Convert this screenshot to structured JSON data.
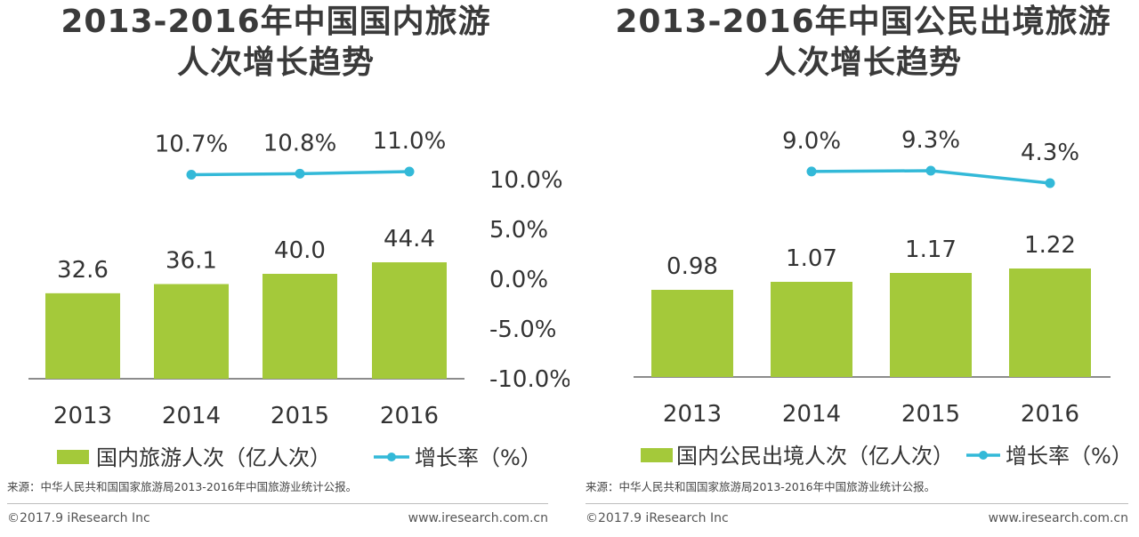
{
  "charts": [
    {
      "title_line1": "2013-2016年中国国内旅游",
      "title_line2": "人次增长趋势",
      "source": "来源：中华人民共和国国家旅游局2013-2016年中国旅游业统计公报。",
      "copyright": "©2017.9 iResearch Inc",
      "website": "www.iresearch.com.cn"
    },
    {
      "title_line1": "2013-2016年中国公民出境旅游",
      "title_line2": "人次增长趋势",
      "source": "来源：中华人民共和国国家旅游局2013-2016年中国旅游业统计公报。",
      "copyright": "©2017.9 iResearch Inc",
      "website": "www.iresearch.com.cn"
    }
  ],
  "colors": {
    "bar": "#a4c93a",
    "line": "#33b9d8",
    "axis": "#555555"
  },
  "chart_data": [
    {
      "type": "bar",
      "title": "2013-2016年中国国内旅游人次增长趋势",
      "categories": [
        "2013",
        "2014",
        "2015",
        "2016"
      ],
      "bar_labels": [
        "32.6",
        "36.1",
        "40.0",
        "44.4"
      ],
      "series": [
        {
          "name": "国内旅游人次（亿人次）",
          "type": "bar",
          "values": [
            32.6,
            36.1,
            40.0,
            44.4
          ]
        },
        {
          "name": "增长率（%）",
          "type": "line",
          "x": [
            "2014",
            "2015",
            "2016"
          ],
          "values": [
            10.7,
            10.8,
            11.0
          ],
          "labels": [
            "10.7%",
            "10.8%",
            "11.0%"
          ]
        }
      ],
      "ylim": [
        0,
        50
      ],
      "y2lim": [
        -10,
        10
      ],
      "y2ticks": [
        "10.0%",
        "5.0%",
        "0.0%",
        "-5.0%",
        "-10.0%"
      ],
      "legend_position": "bottom"
    },
    {
      "type": "bar",
      "title": "2013-2016年中国公民出境旅游人次增长趋势",
      "categories": [
        "2013",
        "2014",
        "2015",
        "2016"
      ],
      "bar_labels": [
        "0.98",
        "1.07",
        "1.17",
        "1.22"
      ],
      "series": [
        {
          "name": "国内公民出境人次（亿人次）",
          "type": "bar",
          "values": [
            0.98,
            1.07,
            1.17,
            1.22
          ]
        },
        {
          "name": "增长率（%）",
          "type": "line",
          "x": [
            "2014",
            "2015",
            "2016"
          ],
          "values": [
            9.0,
            9.3,
            4.3
          ],
          "labels": [
            "9.0%",
            "9.3%",
            "4.3%"
          ]
        }
      ],
      "ylim": [
        0,
        1.5
      ],
      "legend_position": "bottom"
    }
  ]
}
